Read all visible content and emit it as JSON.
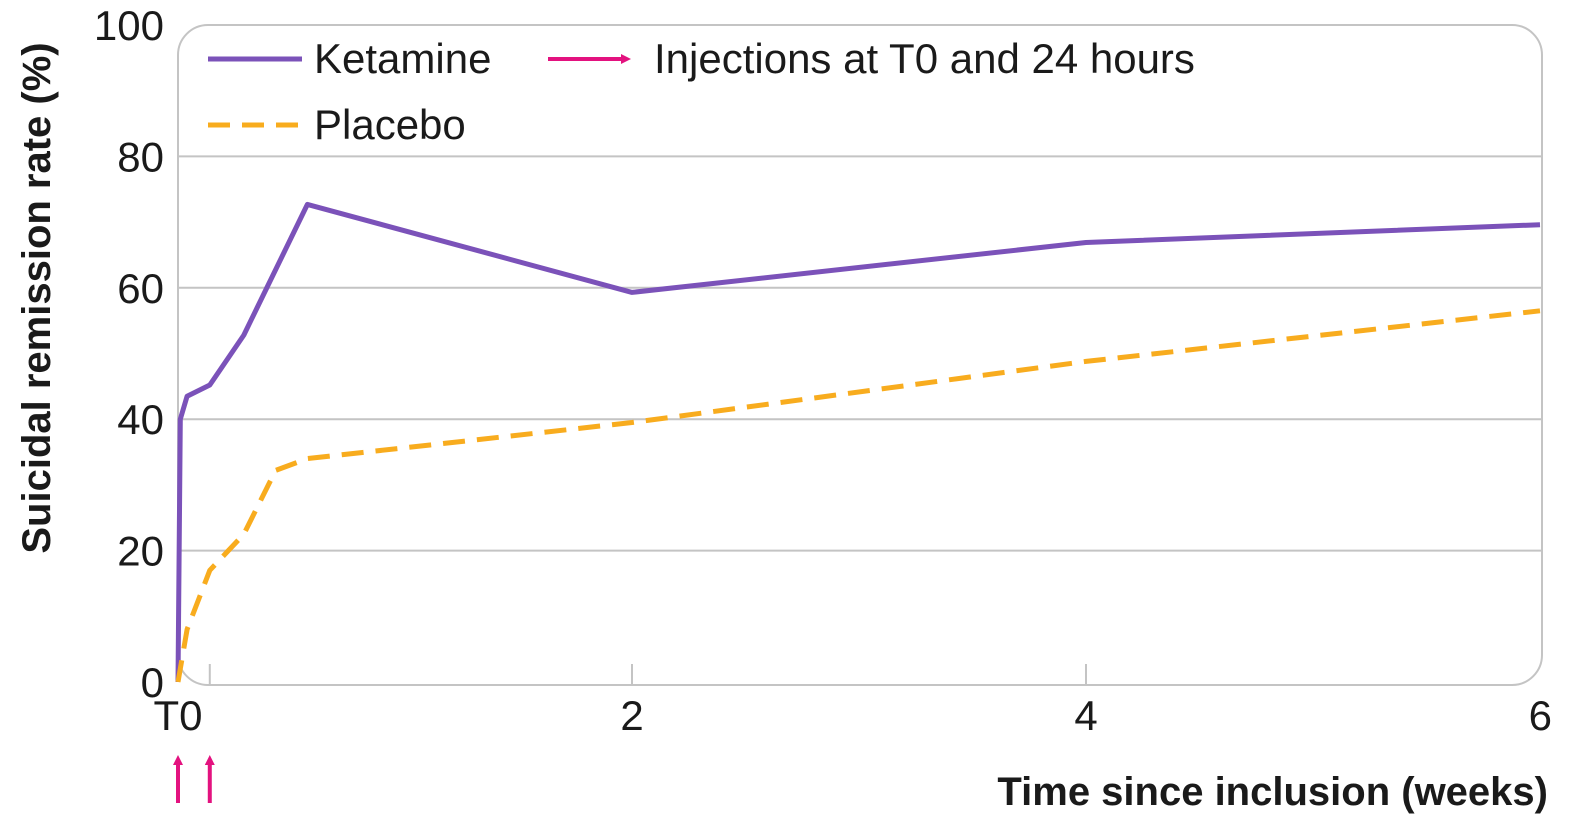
{
  "chart_data": {
    "type": "line",
    "xlabel": "Time since inclusion (weeks)",
    "ylabel": "Suicidal remission rate (%)",
    "xlim": [
      0,
      6
    ],
    "ylim": [
      0,
      100
    ],
    "x_ticks": [
      {
        "value": 0,
        "label": "T0"
      },
      {
        "value": 2,
        "label": "2"
      },
      {
        "value": 4,
        "label": "4"
      },
      {
        "value": 6,
        "label": "6"
      }
    ],
    "y_ticks": [
      {
        "value": 0,
        "label": "0"
      },
      {
        "value": 20,
        "label": "20"
      },
      {
        "value": 40,
        "label": "40"
      },
      {
        "value": 60,
        "label": "60"
      },
      {
        "value": 80,
        "label": "80"
      },
      {
        "value": 100,
        "label": "100"
      }
    ],
    "grid": "horizontal",
    "legend_position": "top-left",
    "series": [
      {
        "name": "Ketamine",
        "color": "#7b52b9",
        "style": "solid",
        "points": [
          [
            0,
            0
          ],
          [
            0.01,
            40
          ],
          [
            0.04,
            43.5
          ],
          [
            0.14,
            45.2
          ],
          [
            0.29,
            52.8
          ],
          [
            0.57,
            72.7
          ],
          [
            2.0,
            59.3
          ],
          [
            4.0,
            66.9
          ],
          [
            6.0,
            69.6
          ]
        ]
      },
      {
        "name": "Placebo",
        "color": "#f8ac1e",
        "style": "dashed",
        "points": [
          [
            0,
            0
          ],
          [
            0.04,
            8
          ],
          [
            0.14,
            17
          ],
          [
            0.29,
            22.5
          ],
          [
            0.43,
            32.2
          ],
          [
            0.57,
            34.0
          ],
          [
            2.0,
            39.5
          ],
          [
            4.0,
            48.8
          ],
          [
            6.0,
            56.5
          ]
        ]
      }
    ],
    "annotation": {
      "label": "Injections at T0 and 24 hours",
      "color": "#e3127f",
      "marker_x": [
        0,
        0.14
      ]
    }
  }
}
